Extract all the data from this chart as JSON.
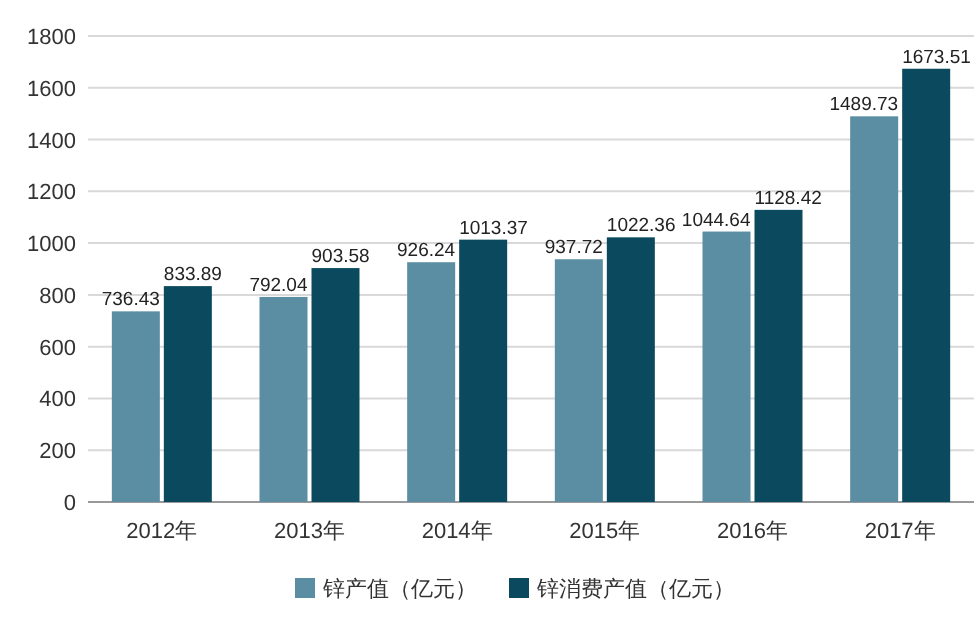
{
  "chart_data": {
    "type": "bar",
    "categories": [
      "2012年",
      "2013年",
      "2014年",
      "2015年",
      "2016年",
      "2017年"
    ],
    "series": [
      {
        "name": "锌产值（亿元）",
        "color": "#5b8ea3",
        "values": [
          736.43,
          792.04,
          926.24,
          937.72,
          1044.64,
          1489.73
        ]
      },
      {
        "name": "锌消费产值（亿元）",
        "color": "#0b4a5e",
        "values": [
          833.89,
          903.58,
          1013.37,
          1022.36,
          1128.42,
          1673.51
        ]
      }
    ],
    "ylim": [
      0,
      1800
    ],
    "yticks": [
      0,
      200,
      400,
      600,
      800,
      1000,
      1200,
      1400,
      1600,
      1800
    ],
    "grid": "y",
    "legend": "bottom",
    "data_labels": true
  }
}
